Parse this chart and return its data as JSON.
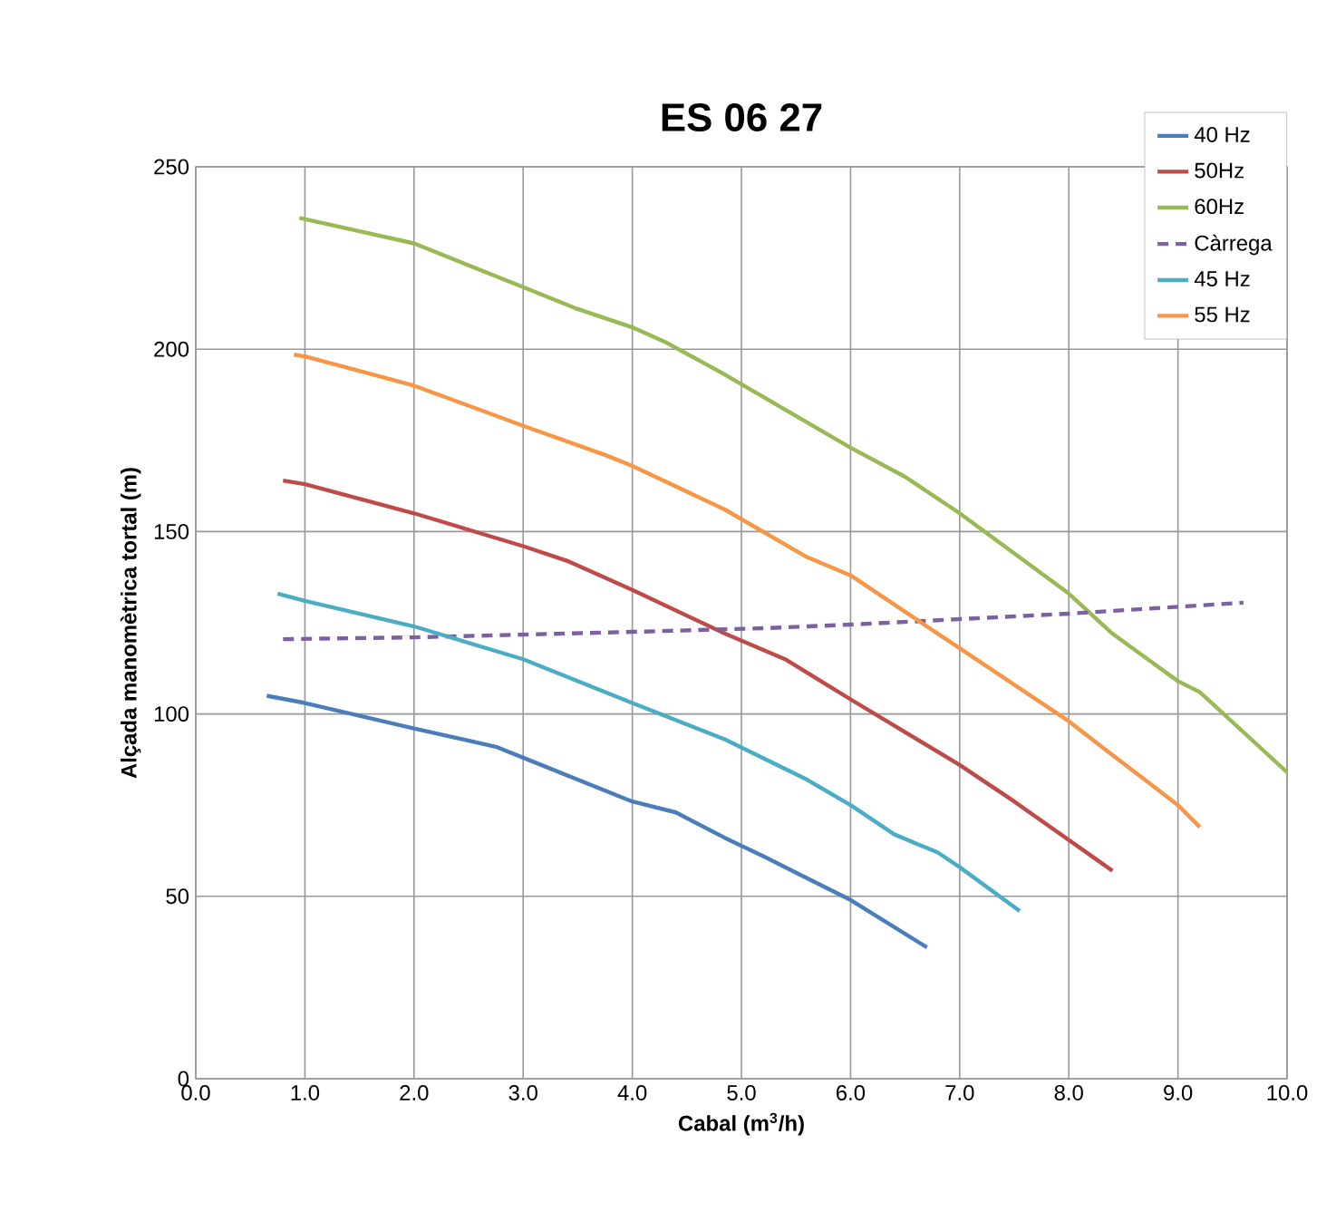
{
  "chart_data": {
    "type": "line",
    "title": "ES 06 27",
    "xlabel": "Cabal (m$^{3}$/h)",
    "ylabel": "Alçada manomètrica tortal (m)",
    "xlim": [
      0,
      10
    ],
    "ylim": [
      0,
      250
    ],
    "xticks": [
      {
        "value": 0,
        "label": "0.0"
      },
      {
        "value": 1,
        "label": "1.0"
      },
      {
        "value": 2,
        "label": "2.0"
      },
      {
        "value": 3,
        "label": "3.0"
      },
      {
        "value": 4,
        "label": "4.0"
      },
      {
        "value": 5,
        "label": "5.0"
      },
      {
        "value": 6,
        "label": "6.0"
      },
      {
        "value": 7,
        "label": "7.0"
      },
      {
        "value": 8,
        "label": "8.0"
      },
      {
        "value": 9,
        "label": "9.0"
      },
      {
        "value": 10,
        "label": "10.0"
      }
    ],
    "yticks": [
      0,
      50,
      100,
      150,
      200,
      250
    ],
    "grid": true,
    "legend": "top right",
    "series": [
      {
        "name": "40 Hz",
        "color": "#4a7ebb",
        "line_style": "solid",
        "x": [
          0.65,
          1.0,
          2.0,
          2.75,
          3.0,
          4.0,
          4.4,
          4.85,
          5.2,
          5.6,
          6.0,
          6.7
        ],
        "values": [
          105,
          103,
          96,
          91,
          88,
          76,
          73,
          66,
          61,
          55,
          49,
          36
        ]
      },
      {
        "name": "50Hz",
        "color": "#be4b48",
        "line_style": "solid",
        "x": [
          0.8,
          1.0,
          2.0,
          3.0,
          3.4,
          4.0,
          4.85,
          5.4,
          6.0,
          7.0,
          7.5,
          8.4
        ],
        "values": [
          164,
          163,
          155,
          146,
          142,
          134,
          122,
          115,
          104,
          86,
          76,
          57
        ]
      },
      {
        "name": "60Hz",
        "color": "#98b954",
        "line_style": "solid",
        "x": [
          0.95,
          2.0,
          3.0,
          3.5,
          4.0,
          4.3,
          4.85,
          6.0,
          6.5,
          7.0,
          8.0,
          8.4,
          9.0,
          9.2,
          10.0
        ],
        "values": [
          236,
          229,
          217,
          211,
          206,
          202,
          193,
          173,
          165,
          155,
          133,
          122,
          109,
          106,
          84
        ]
      },
      {
        "name": "Càrrega",
        "color": "#7d60a0",
        "line_style": "dashed",
        "x": [
          0.8,
          2.0,
          4.0,
          5.2,
          6.0,
          8.0,
          9.6
        ],
        "values": [
          120.5,
          121,
          122.5,
          123.5,
          124.5,
          127.5,
          130.5
        ]
      },
      {
        "name": "45 Hz",
        "color": "#4bacc6",
        "line_style": "solid",
        "x": [
          0.75,
          1.0,
          2.0,
          3.0,
          4.0,
          4.85,
          5.6,
          6.0,
          6.4,
          6.8,
          7.0,
          7.55
        ],
        "values": [
          133,
          131,
          124,
          115,
          103,
          93,
          82,
          75,
          67,
          62,
          58,
          46
        ]
      },
      {
        "name": "55 Hz",
        "color": "#f79646",
        "line_style": "solid",
        "x": [
          0.9,
          1.0,
          2.0,
          3.0,
          3.75,
          4.0,
          4.85,
          5.6,
          6.0,
          7.0,
          8.0,
          8.3,
          9.0,
          9.2
        ],
        "values": [
          198.5,
          198,
          190,
          179,
          171,
          168,
          156,
          143,
          138,
          118,
          98,
          91,
          75,
          69
        ]
      }
    ]
  }
}
